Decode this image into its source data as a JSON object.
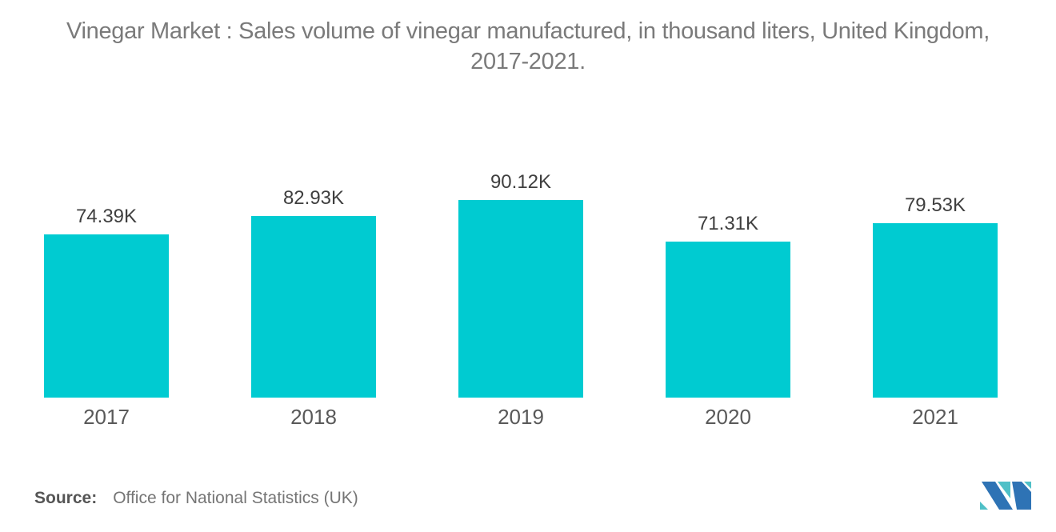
{
  "title": {
    "line1": "Vinegar Market : Sales volume of vinegar manufactured, in thousand liters, United Kingdom,",
    "line2": "2017-2021."
  },
  "source": {
    "label": "Source:",
    "text": "Office for National Statistics (UK)"
  },
  "logo": {
    "name": "Mordor Intelligence logo",
    "teal": "#4fc0c7",
    "blue": "#2e73b5"
  },
  "chart_data": {
    "type": "bar",
    "title": "Vinegar Market : Sales volume of vinegar manufactured, in thousand liters, United Kingdom, 2017-2021.",
    "categories": [
      "2017",
      "2018",
      "2019",
      "2020",
      "2021"
    ],
    "values": [
      74.39,
      82.93,
      90.12,
      71.31,
      79.53
    ],
    "value_labels": [
      "74.39K",
      "82.93K",
      "90.12K",
      "71.31K",
      "79.53K"
    ],
    "unit": "thousand liters",
    "bar_color": "#00cbd1",
    "label_color": "#3f3f3f",
    "axis_label_color": "#595959",
    "ylim": [
      0,
      100
    ],
    "grid": false,
    "legend": false
  }
}
